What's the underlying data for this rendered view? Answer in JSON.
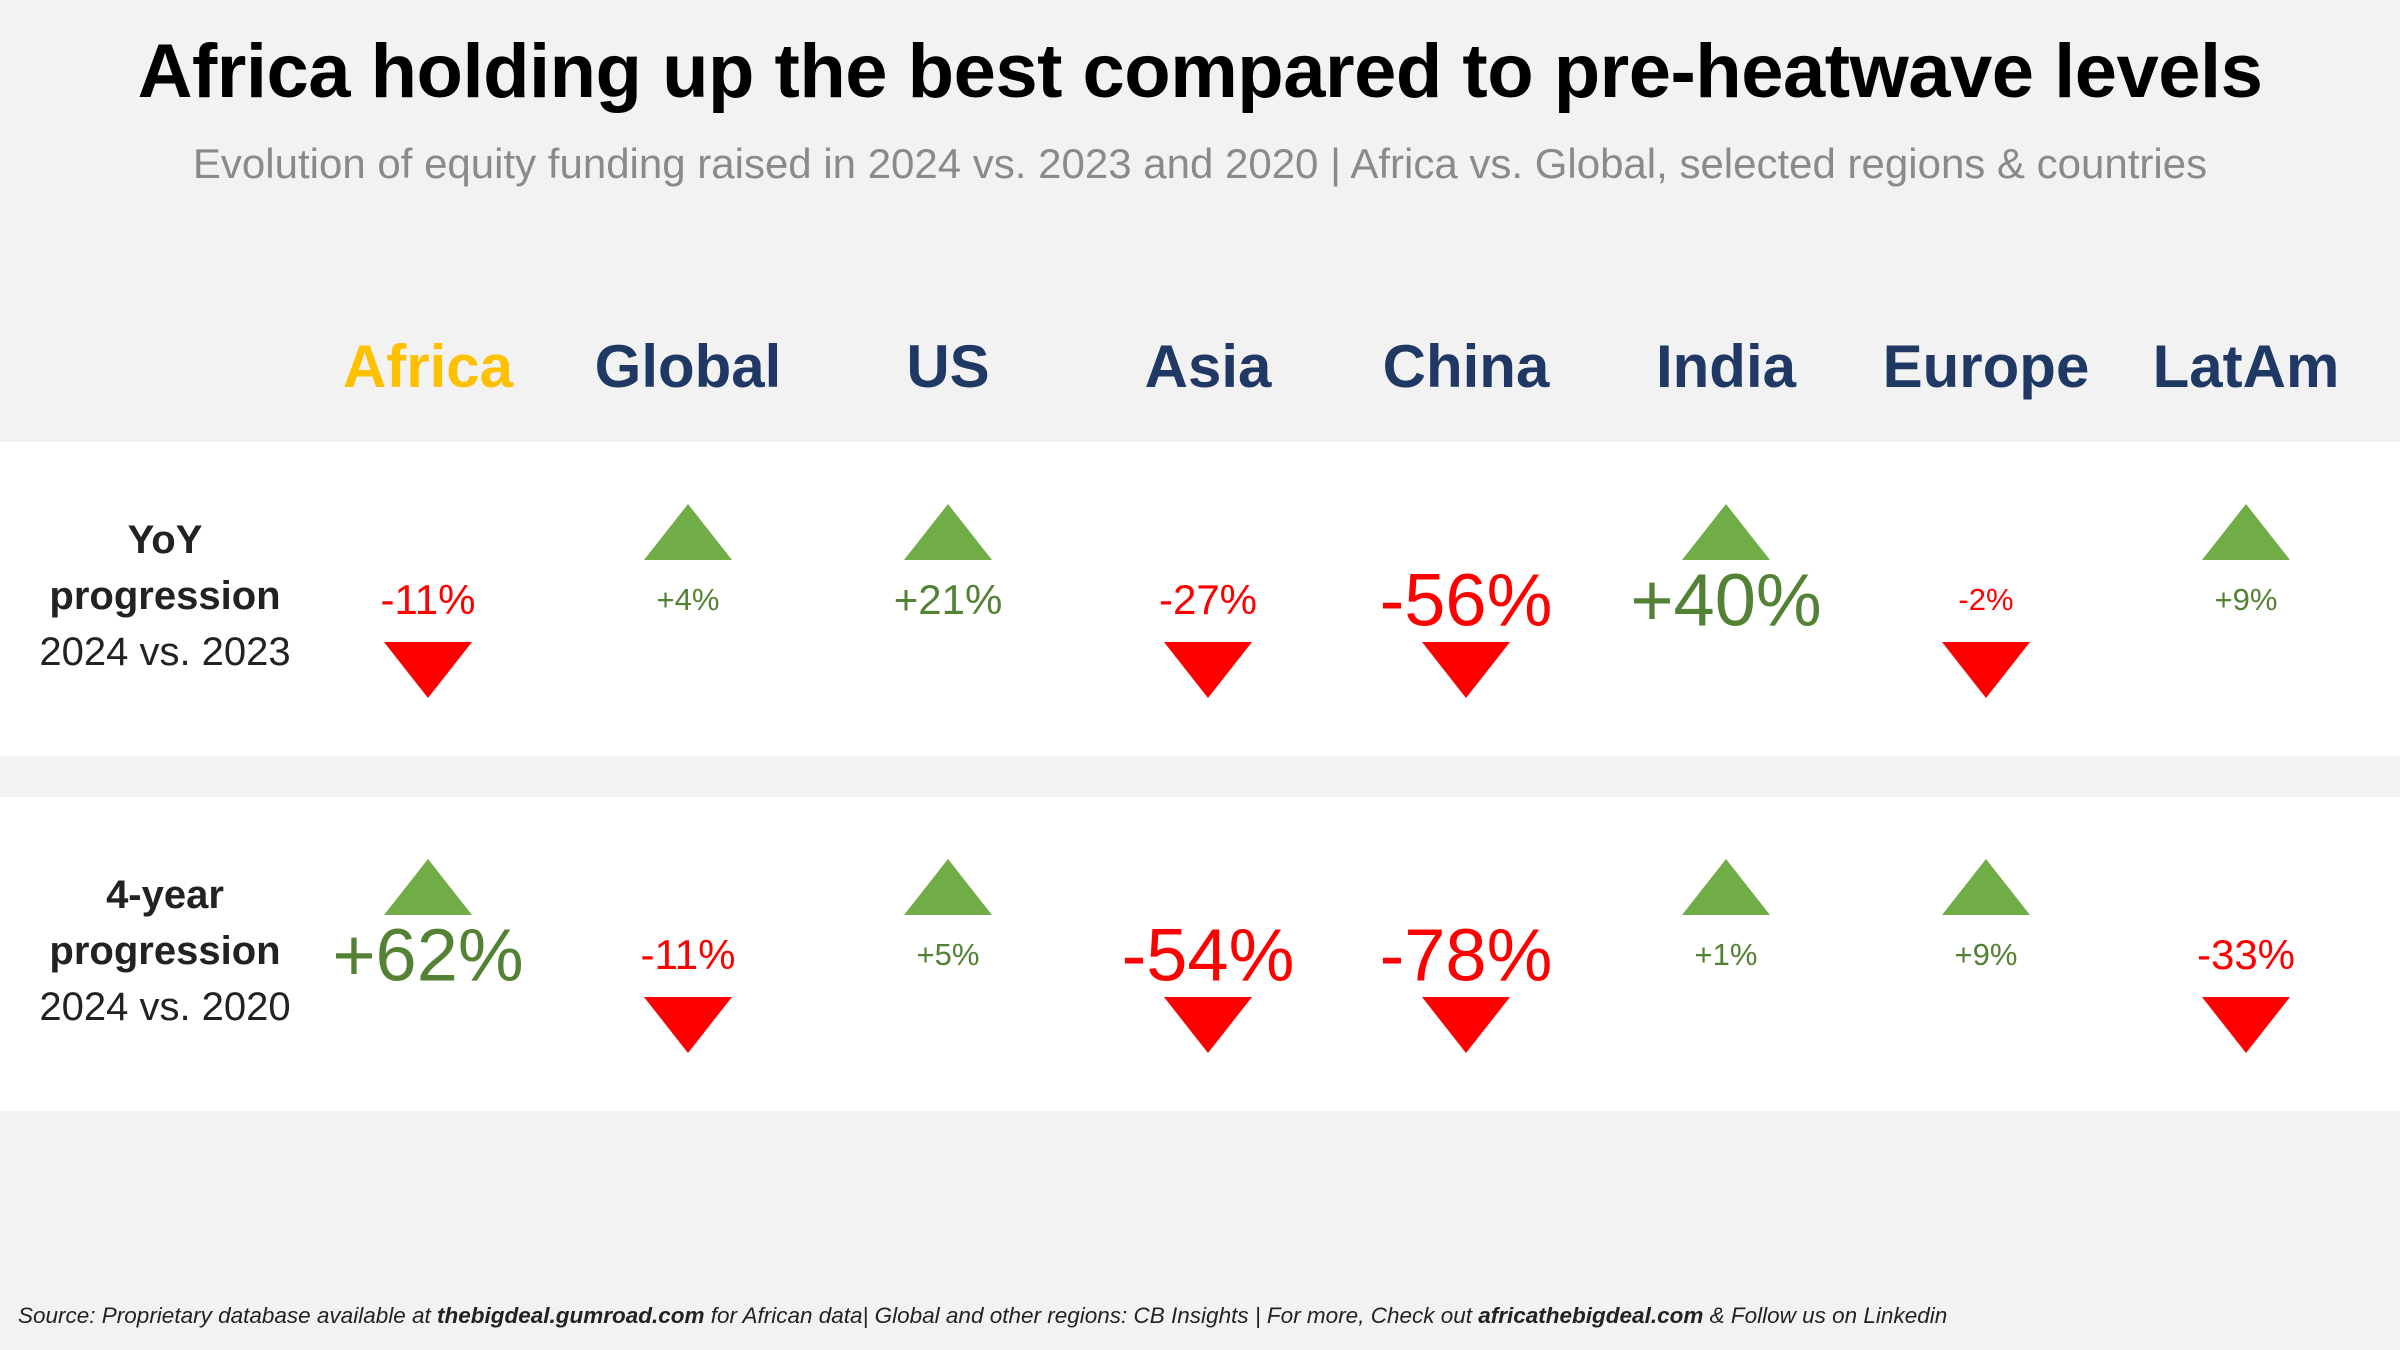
{
  "title": "Africa holding up the best compared to pre-heatwave levels",
  "subtitle": "Evolution of equity funding raised in 2024 vs. 2023 and 2020 | Africa vs. Global, selected regions & countries",
  "columns": [
    "Africa",
    "Global",
    "US",
    "Asia",
    "China",
    "India",
    "Europe",
    "LatAm"
  ],
  "highlight_color": "#ffc000",
  "header_color": "#1f3864",
  "positive_color": "#548235",
  "negative_color": "#ff0000",
  "rows": [
    {
      "label_bold_1": "YoY",
      "label_bold_2": "progression",
      "label_normal": "2024 vs. 2023",
      "values": [
        "-11%",
        "+4%",
        "+21%",
        "-27%",
        "-56%",
        "+40%",
        "-2%",
        "+9%"
      ],
      "numbers": [
        -11,
        4,
        21,
        -27,
        -56,
        40,
        -2,
        9
      ]
    },
    {
      "label_bold_1": "4-year",
      "label_bold_2": "progression",
      "label_normal": "2024 vs. 2020",
      "values": [
        "+62%",
        "-11%",
        "+5%",
        "-54%",
        "-78%",
        "+1%",
        "+9%",
        "-33%"
      ],
      "numbers": [
        62,
        -11,
        5,
        -54,
        -78,
        1,
        9,
        -33
      ]
    }
  ],
  "source": {
    "p1": "Source: Proprietary database available at ",
    "link1": "thebigdeal.gumroad.com",
    "p2": " for African data| Global and other regions: CB Insights | For more, Check out ",
    "link2": "africathebigdeal.com",
    "p3": " & Follow us on Linkedin"
  }
}
